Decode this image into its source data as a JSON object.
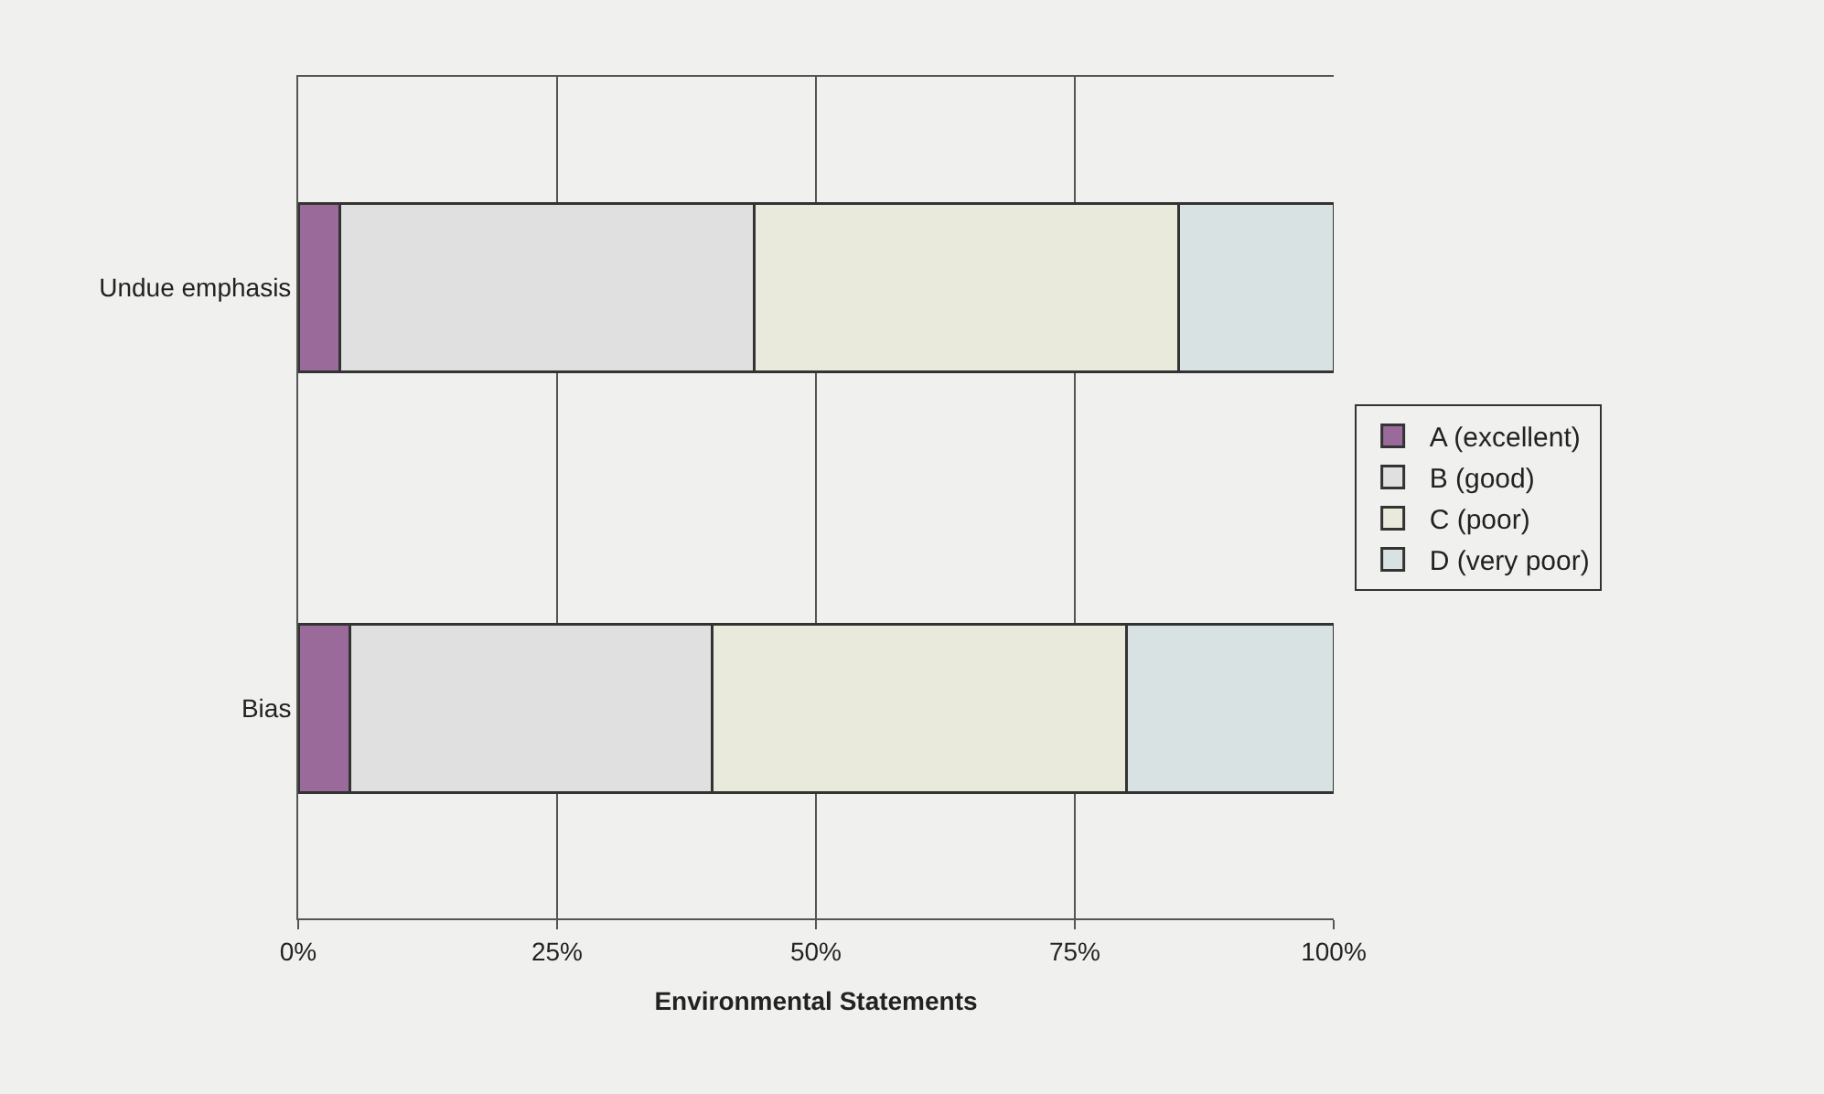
{
  "chart_data": {
    "type": "bar",
    "orientation": "horizontal",
    "stacked": true,
    "xlabel": "Environmental Statements",
    "categories": [
      "Undue emphasis",
      "Bias"
    ],
    "series": [
      {
        "name": "A (excellent)",
        "color": "#9a6a9a",
        "values": [
          4,
          5
        ]
      },
      {
        "name": "B (good)",
        "color": "#dfe0df",
        "values": [
          40,
          35
        ]
      },
      {
        "name": "C (poor)",
        "color": "#e9eadc",
        "values": [
          41,
          40
        ]
      },
      {
        "name": "D (very poor)",
        "color": "#d9e2e2",
        "values": [
          15,
          20
        ]
      }
    ],
    "xlim": [
      0,
      100
    ],
    "xticks": [
      {
        "value": 0,
        "label": "0%"
      },
      {
        "value": 25,
        "label": "25%"
      },
      {
        "value": 50,
        "label": "50%"
      },
      {
        "value": 75,
        "label": "75%"
      },
      {
        "value": 100,
        "label": "100%"
      }
    ],
    "grid": "x",
    "legend": "right"
  }
}
